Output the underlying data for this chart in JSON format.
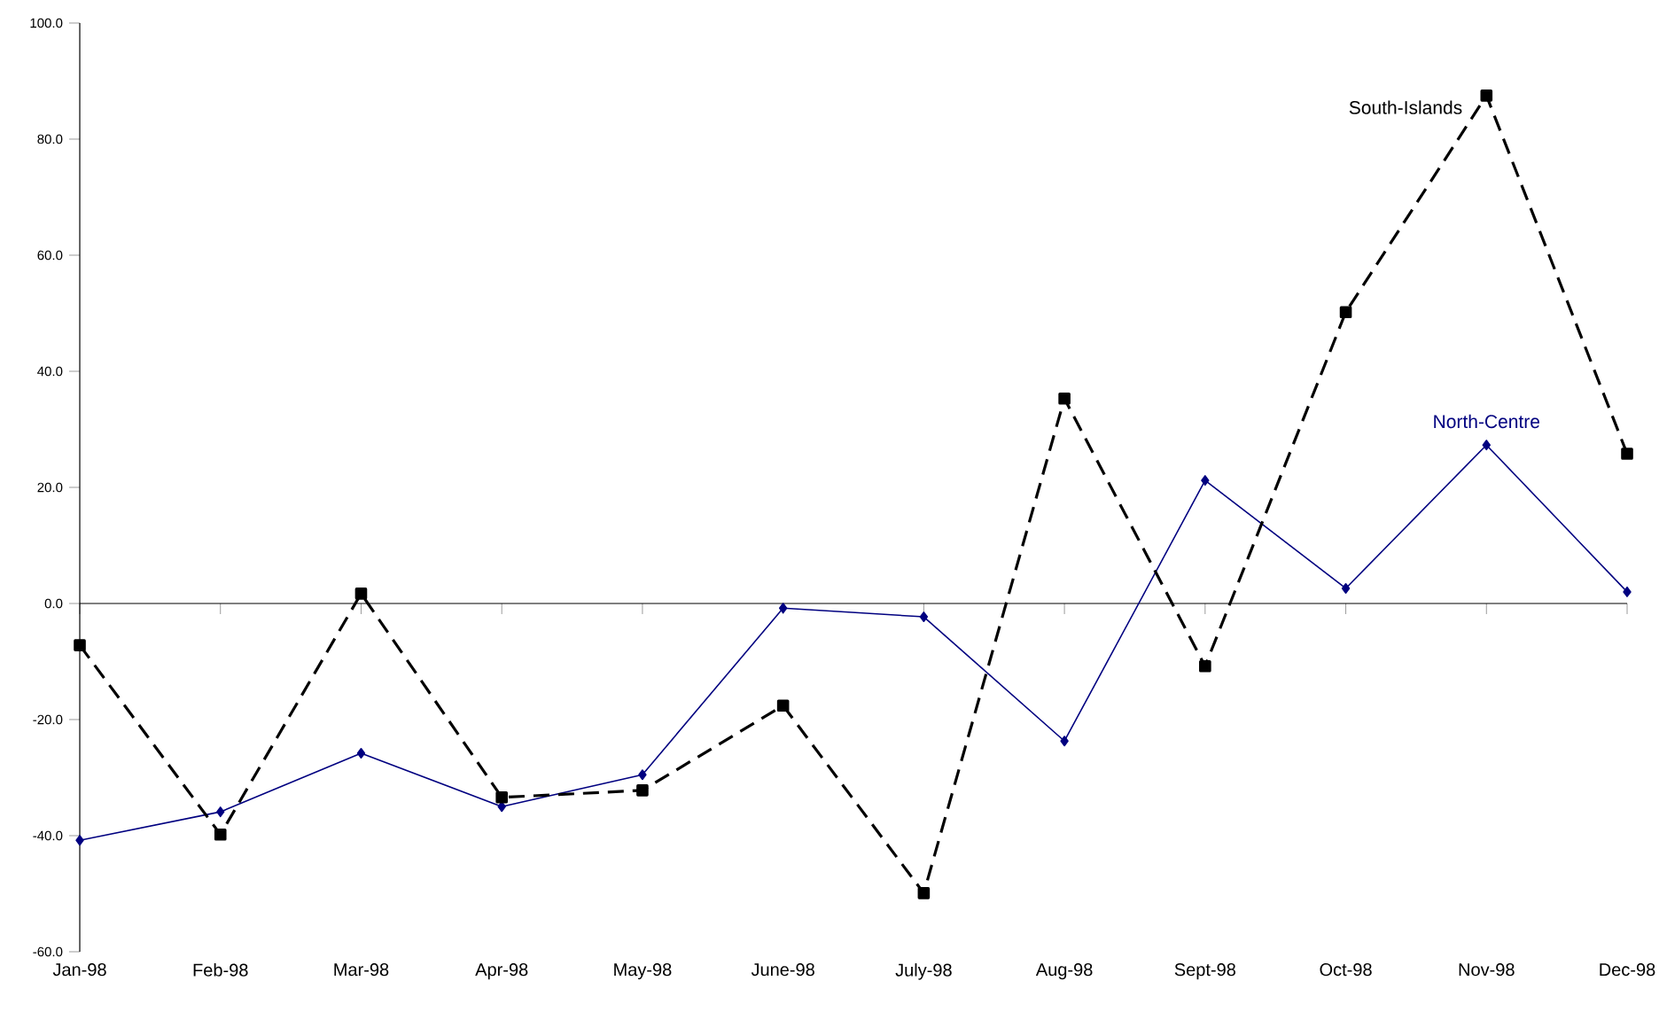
{
  "chart_data": {
    "type": "line",
    "categories": [
      "Jan-98",
      "Feb-98",
      "Mar-98",
      "Apr-98",
      "May-98",
      "June-98",
      "July-98",
      "Aug-98",
      "Sept-98",
      "Oct-98",
      "Nov-98",
      "Dec-98"
    ],
    "series": [
      {
        "name": "North-Centre",
        "color": "#000080",
        "marker": "diamond",
        "line_style": "solid",
        "values": [
          -40.8,
          -35.9,
          -25.8,
          -35.0,
          -29.5,
          -0.8,
          -2.3,
          -23.7,
          21.2,
          2.6,
          27.3,
          2.0
        ]
      },
      {
        "name": "South-Islands",
        "color": "#000000",
        "marker": "square",
        "line_style": "dashed",
        "values": [
          -7.2,
          -39.8,
          1.7,
          -33.4,
          -32.2,
          -17.6,
          -49.9,
          35.3,
          -10.8,
          50.2,
          87.5,
          25.8
        ]
      }
    ],
    "ylim": [
      -60,
      100
    ],
    "yticks": [
      {
        "value": -60,
        "label": "-60.0"
      },
      {
        "value": -40,
        "label": "-40.0"
      },
      {
        "value": -20,
        "label": "-20.0"
      },
      {
        "value": 0,
        "label": "0.0"
      },
      {
        "value": 20,
        "label": "20.0"
      },
      {
        "value": 40,
        "label": "40.0"
      },
      {
        "value": 60,
        "label": "60.0"
      },
      {
        "value": 80,
        "label": "80.0"
      },
      {
        "value": 100,
        "label": "100.0"
      }
    ],
    "legend": false
  }
}
